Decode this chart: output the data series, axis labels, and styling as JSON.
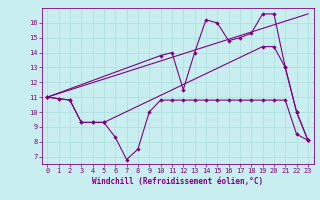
{
  "title": "",
  "xlabel": "Windchill (Refroidissement éolien,°C)",
  "ylabel": "",
  "bg_color": "#c8eef0",
  "line_color": "#800080",
  "grid_color": "#aadddd",
  "xlim": [
    -0.5,
    23.5
  ],
  "ylim": [
    6.5,
    17.0
  ],
  "xticks": [
    0,
    1,
    2,
    3,
    4,
    5,
    6,
    7,
    8,
    9,
    10,
    11,
    12,
    13,
    14,
    15,
    16,
    17,
    18,
    19,
    20,
    21,
    22,
    23
  ],
  "yticks": [
    7,
    8,
    9,
    10,
    11,
    12,
    13,
    14,
    15,
    16
  ],
  "line1_x": [
    0,
    1,
    2,
    3,
    4,
    5,
    6,
    7,
    8,
    9,
    10,
    11,
    12,
    13,
    14,
    15,
    16,
    17,
    18,
    19,
    20,
    21,
    22,
    23
  ],
  "line1_y": [
    11.0,
    10.9,
    10.8,
    9.3,
    9.3,
    9.3,
    8.3,
    6.8,
    7.5,
    10.0,
    10.8,
    10.8,
    10.8,
    10.8,
    10.8,
    10.8,
    10.8,
    10.8,
    10.8,
    10.8,
    10.8,
    10.8,
    8.5,
    8.1
  ],
  "line2_x": [
    0,
    1,
    2,
    3,
    4,
    5,
    19,
    20,
    21,
    22,
    23
  ],
  "line2_y": [
    11.0,
    10.9,
    10.8,
    9.3,
    9.3,
    9.3,
    14.4,
    14.4,
    13.0,
    10.0,
    8.1
  ],
  "line3_x": [
    0,
    10,
    11,
    12,
    13,
    14,
    15,
    16,
    17,
    18,
    19,
    20,
    21,
    22,
    23
  ],
  "line3_y": [
    11.0,
    13.8,
    14.0,
    11.5,
    14.0,
    16.2,
    16.0,
    14.8,
    15.0,
    15.3,
    16.6,
    16.6,
    13.0,
    10.0,
    8.1
  ],
  "line4_x": [
    0,
    23
  ],
  "line4_y": [
    11.0,
    16.6
  ],
  "tick_fontsize": 5,
  "xlabel_fontsize": 5.5
}
